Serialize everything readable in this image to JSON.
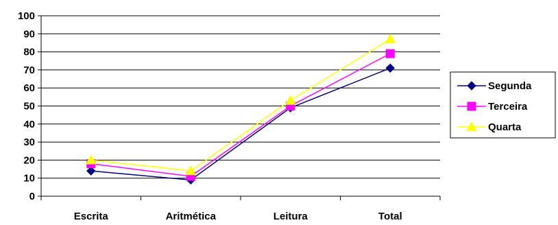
{
  "chart_data": {
    "type": "line",
    "categories": [
      "Escrita",
      "Aritmética",
      "Leitura",
      "Total"
    ],
    "ylim": [
      0,
      100
    ],
    "yticks": [
      0,
      10,
      20,
      30,
      40,
      50,
      60,
      70,
      80,
      90,
      100
    ],
    "grid": true,
    "legend_position": "right",
    "series": [
      {
        "name": "Segunda",
        "values": [
          14,
          9,
          49,
          71
        ],
        "color": "#000080",
        "marker": "diamond"
      },
      {
        "name": "Terceira",
        "values": [
          18,
          11,
          50,
          79
        ],
        "color": "#ff00ff",
        "marker": "square"
      },
      {
        "name": "Quarta",
        "values": [
          20,
          14,
          53,
          87
        ],
        "color": "#ffff00",
        "marker": "triangle"
      }
    ]
  }
}
